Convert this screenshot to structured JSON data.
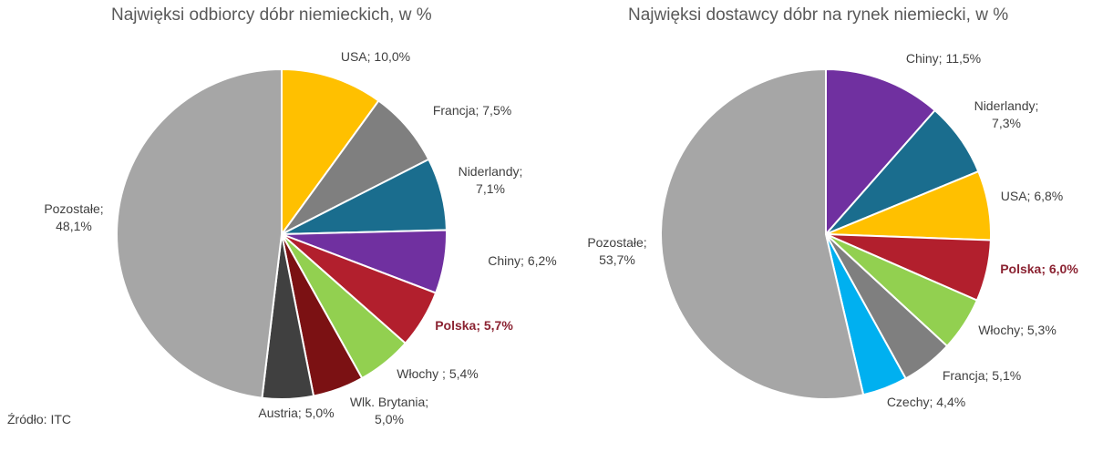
{
  "source_note": "Źródło: ITC",
  "chart_data": [
    {
      "type": "pie",
      "title": "Najwięksi odbiorcy dóbr niemieckich, w %",
      "unit": "%",
      "slices": [
        {
          "name": "USA",
          "value": 10.0,
          "label": "USA; 10,0%",
          "color": "#ffc000"
        },
        {
          "name": "Francja",
          "value": 7.5,
          "label": "Francja; 7,5%",
          "color": "#7f7f7f"
        },
        {
          "name": "Niderlandy",
          "value": 7.1,
          "label": "Niderlandy;\n7,1%",
          "color": "#1a6d8e"
        },
        {
          "name": "Chiny",
          "value": 6.2,
          "label": "Chiny; 6,2%",
          "color": "#7030a0"
        },
        {
          "name": "Polska",
          "value": 5.7,
          "label": "Polska; 5,7%",
          "color": "#b21f2d",
          "highlight": true
        },
        {
          "name": "Włochy",
          "value": 5.4,
          "label": "Włochy ; 5,4%",
          "color": "#92d050"
        },
        {
          "name": "Wlk. Brytania",
          "value": 5.0,
          "label": "Wlk. Brytania;\n5,0%",
          "color": "#7b1113"
        },
        {
          "name": "Austria",
          "value": 5.0,
          "label": "Austria; 5,0%",
          "color": "#404040"
        },
        {
          "name": "Pozostałe",
          "value": 48.1,
          "label": "Pozostałe;\n48,1%",
          "color": "#a6a6a6"
        }
      ]
    },
    {
      "type": "pie",
      "title": "Najwięksi dostawcy dóbr na rynek niemiecki, w %",
      "unit": "%",
      "slices": [
        {
          "name": "Chiny",
          "value": 11.5,
          "label": "Chiny; 11,5%",
          "color": "#7030a0"
        },
        {
          "name": "Niderlandy",
          "value": 7.3,
          "label": "Niderlandy;\n7,3%",
          "color": "#1a6d8e"
        },
        {
          "name": "USA",
          "value": 6.8,
          "label": "USA; 6,8%",
          "color": "#ffc000"
        },
        {
          "name": "Polska",
          "value": 6.0,
          "label": "Polska; 6,0%",
          "color": "#b21f2d",
          "highlight": true
        },
        {
          "name": "Włochy",
          "value": 5.3,
          "label": "Włochy; 5,3%",
          "color": "#92d050"
        },
        {
          "name": "Francja",
          "value": 5.1,
          "label": "Francja; 5,1%",
          "color": "#7f7f7f"
        },
        {
          "name": "Czechy",
          "value": 4.4,
          "label": "Czechy; 4,4%",
          "color": "#00b0f0"
        },
        {
          "name": "Pozostałe",
          "value": 53.7,
          "label": "Pozostałe;\n53,7%",
          "color": "#a6a6a6"
        }
      ]
    }
  ]
}
